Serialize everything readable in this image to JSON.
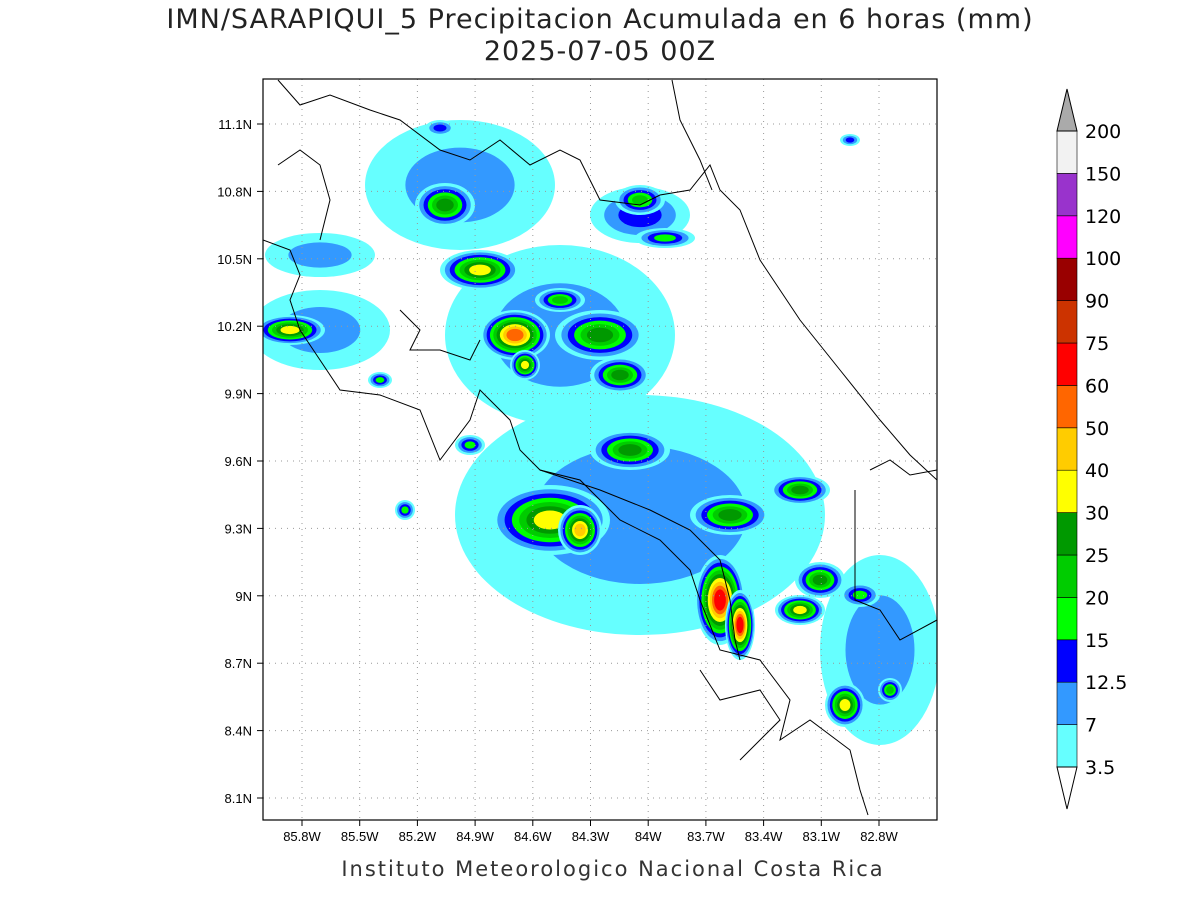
{
  "header": {
    "title": "IMN/SARAPIQUI_5 Precipitacion Acumulada en 6 horas (mm)",
    "subtitle": "2025-07-05 00Z"
  },
  "map": {
    "lat_labels": [
      "11.1N",
      "10.8N",
      "10.5N",
      "10.2N",
      "9.9N",
      "9.6N",
      "9.3N",
      "9N",
      "8.7N",
      "8.4N",
      "8.1N"
    ],
    "lon_labels": [
      "85.8W",
      "85.5W",
      "85.2W",
      "84.9W",
      "84.6W",
      "84.3W",
      "84W",
      "83.7W",
      "83.4W",
      "83.1W",
      "82.8W"
    ],
    "grid": true
  },
  "colorbar": {
    "levels": [
      3.5,
      7,
      12.5,
      15,
      20,
      25,
      30,
      40,
      50,
      60,
      75,
      90,
      100,
      120,
      150,
      200
    ],
    "colors": [
      "#66ffff",
      "#3399ff",
      "#0000ff",
      "#00ff00",
      "#00cc00",
      "#009900",
      "#ffff00",
      "#ffcc00",
      "#ff6600",
      "#ff0000",
      "#cc3300",
      "#990000",
      "#ff00ff",
      "#9933cc",
      "#f2f2f2"
    ],
    "under_color": "#ffffff",
    "over_color": "#aaaaaa"
  },
  "footer": "Instituto Meteorologico Nacional Costa Rica"
}
